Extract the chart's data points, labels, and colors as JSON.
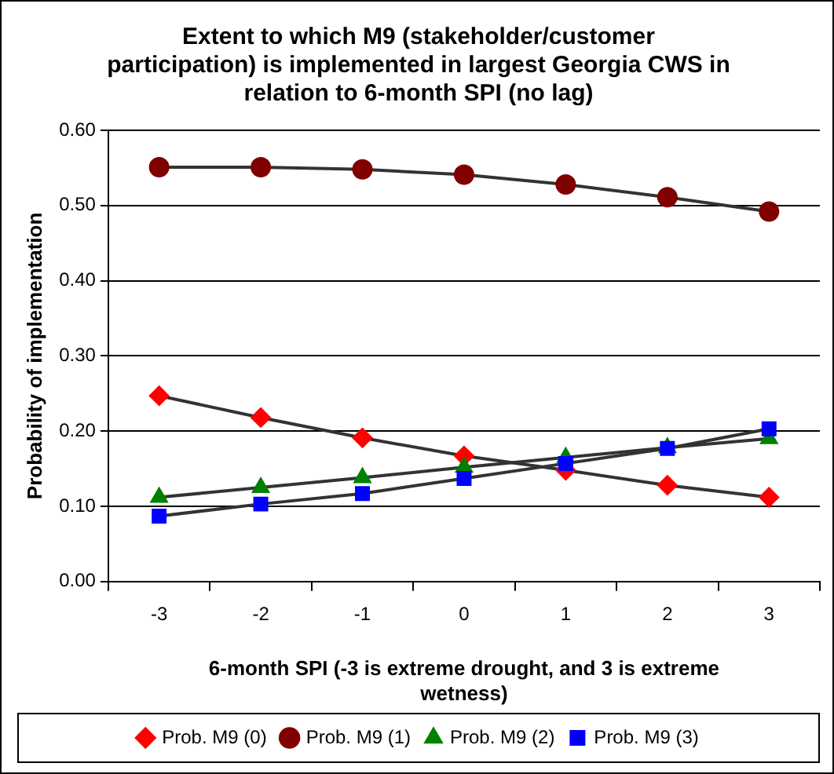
{
  "chart_data": {
    "type": "line",
    "title": "Extent to which M9 (stakeholder/customer participation) is implemented in largest Georgia CWS in relation to 6-month SPI (no lag)",
    "xlabel": "6-month SPI (-3 is extreme drought, and 3 is extreme wetness)",
    "ylabel": "Probability of implementation",
    "categories": [
      "-3",
      "-2",
      "-1",
      "0",
      "1",
      "2",
      "3"
    ],
    "series": [
      {
        "name": "Prob. M9 (0)",
        "color": "#ff0000",
        "marker": "diamond",
        "values": [
          0.247,
          0.218,
          0.191,
          0.167,
          0.148,
          0.128,
          0.112
        ]
      },
      {
        "name": "Prob. M9 (1)",
        "color": "#800000",
        "marker": "circle",
        "values": [
          0.551,
          0.551,
          0.548,
          0.541,
          0.528,
          0.511,
          0.492
        ]
      },
      {
        "name": "Prob. M9 (2)",
        "color": "#008000",
        "marker": "triangle",
        "values": [
          0.112,
          0.125,
          0.138,
          0.152,
          0.165,
          0.178,
          0.19
        ]
      },
      {
        "name": "Prob. M9 (3)",
        "color": "#0000ff",
        "marker": "square",
        "values": [
          0.087,
          0.103,
          0.117,
          0.137,
          0.157,
          0.177,
          0.203
        ]
      }
    ],
    "ylim": [
      0,
      0.6
    ],
    "yticks": [
      {
        "value": 0,
        "label": "0.00"
      },
      {
        "value": 0.1,
        "label": "0.10"
      },
      {
        "value": 0.2,
        "label": "0.20"
      },
      {
        "value": 0.3,
        "label": "0.30"
      },
      {
        "value": 0.4,
        "label": "0.40"
      },
      {
        "value": 0.5,
        "label": "0.50"
      },
      {
        "value": 0.6,
        "label": "0.60"
      }
    ],
    "grid": "y",
    "legend": "bottom",
    "line_style": "solid"
  }
}
